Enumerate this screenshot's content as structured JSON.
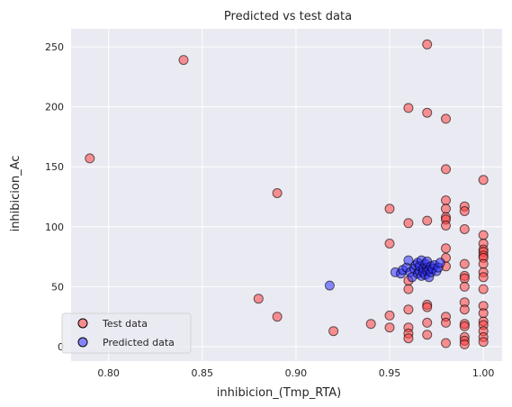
{
  "chart_data": {
    "type": "scatter",
    "title": "Predicted vs test data",
    "xlabel": "inhibicion_(Tmp_RTA)",
    "ylabel": "inhibicion_Ac",
    "xlim": [
      0.78,
      1.01
    ],
    "ylim": [
      -12,
      265
    ],
    "xticks": [
      "0.80",
      "0.85",
      "0.90",
      "0.95",
      "1.00"
    ],
    "yticks": [
      "0",
      "50",
      "100",
      "150",
      "200",
      "250"
    ],
    "grid": true,
    "legend": {
      "position": "lower-left"
    },
    "series": [
      {
        "name": "Test data",
        "color": "#ff4040",
        "points": [
          [
            0.79,
            157
          ],
          [
            0.84,
            239
          ],
          [
            0.88,
            40
          ],
          [
            0.89,
            25
          ],
          [
            0.89,
            128
          ],
          [
            0.92,
            13
          ],
          [
            0.94,
            19
          ],
          [
            0.95,
            115
          ],
          [
            0.95,
            86
          ],
          [
            0.95,
            26
          ],
          [
            0.95,
            16
          ],
          [
            0.96,
            199
          ],
          [
            0.96,
            103
          ],
          [
            0.96,
            55
          ],
          [
            0.96,
            48
          ],
          [
            0.96,
            31
          ],
          [
            0.96,
            16
          ],
          [
            0.96,
            11
          ],
          [
            0.96,
            7
          ],
          [
            0.97,
            252
          ],
          [
            0.97,
            195
          ],
          [
            0.97,
            105
          ],
          [
            0.97,
            35
          ],
          [
            0.97,
            33
          ],
          [
            0.97,
            20
          ],
          [
            0.97,
            10
          ],
          [
            0.98,
            190
          ],
          [
            0.98,
            148
          ],
          [
            0.98,
            122
          ],
          [
            0.98,
            115
          ],
          [
            0.98,
            108
          ],
          [
            0.98,
            106
          ],
          [
            0.98,
            101
          ],
          [
            0.98,
            82
          ],
          [
            0.98,
            74
          ],
          [
            0.98,
            67
          ],
          [
            0.98,
            25
          ],
          [
            0.98,
            20
          ],
          [
            0.98,
            3
          ],
          [
            0.99,
            117
          ],
          [
            0.99,
            113
          ],
          [
            0.99,
            98
          ],
          [
            0.99,
            69
          ],
          [
            0.99,
            59
          ],
          [
            0.99,
            57
          ],
          [
            0.99,
            50
          ],
          [
            0.99,
            37
          ],
          [
            0.99,
            31
          ],
          [
            0.99,
            19
          ],
          [
            0.99,
            17
          ],
          [
            0.99,
            8
          ],
          [
            0.99,
            5
          ],
          [
            0.99,
            2
          ],
          [
            1.0,
            139
          ],
          [
            1.0,
            93
          ],
          [
            1.0,
            86
          ],
          [
            1.0,
            81
          ],
          [
            1.0,
            79
          ],
          [
            1.0,
            76
          ],
          [
            1.0,
            74
          ],
          [
            1.0,
            69
          ],
          [
            1.0,
            62
          ],
          [
            1.0,
            58
          ],
          [
            1.0,
            48
          ],
          [
            1.0,
            34
          ],
          [
            1.0,
            28
          ],
          [
            1.0,
            21
          ],
          [
            1.0,
            18
          ],
          [
            1.0,
            13
          ],
          [
            1.0,
            8
          ],
          [
            1.0,
            4
          ]
        ]
      },
      {
        "name": "Predicted data",
        "color": "#3030ff",
        "points": [
          [
            0.918,
            51
          ],
          [
            0.953,
            62
          ],
          [
            0.956,
            61
          ],
          [
            0.957,
            64
          ],
          [
            0.959,
            66
          ],
          [
            0.96,
            72
          ],
          [
            0.961,
            62
          ],
          [
            0.962,
            58
          ],
          [
            0.963,
            65
          ],
          [
            0.964,
            68
          ],
          [
            0.965,
            61
          ],
          [
            0.965,
            70
          ],
          [
            0.966,
            63
          ],
          [
            0.966,
            67
          ],
          [
            0.967,
            59
          ],
          [
            0.967,
            72
          ],
          [
            0.968,
            65
          ],
          [
            0.968,
            62
          ],
          [
            0.969,
            69
          ],
          [
            0.969,
            60
          ],
          [
            0.97,
            66
          ],
          [
            0.97,
            63
          ],
          [
            0.97,
            71
          ],
          [
            0.971,
            64
          ],
          [
            0.971,
            58
          ],
          [
            0.972,
            67
          ],
          [
            0.972,
            62
          ],
          [
            0.973,
            65
          ],
          [
            0.974,
            68
          ],
          [
            0.975,
            63
          ],
          [
            0.976,
            66
          ],
          [
            0.977,
            70
          ]
        ]
      }
    ]
  }
}
